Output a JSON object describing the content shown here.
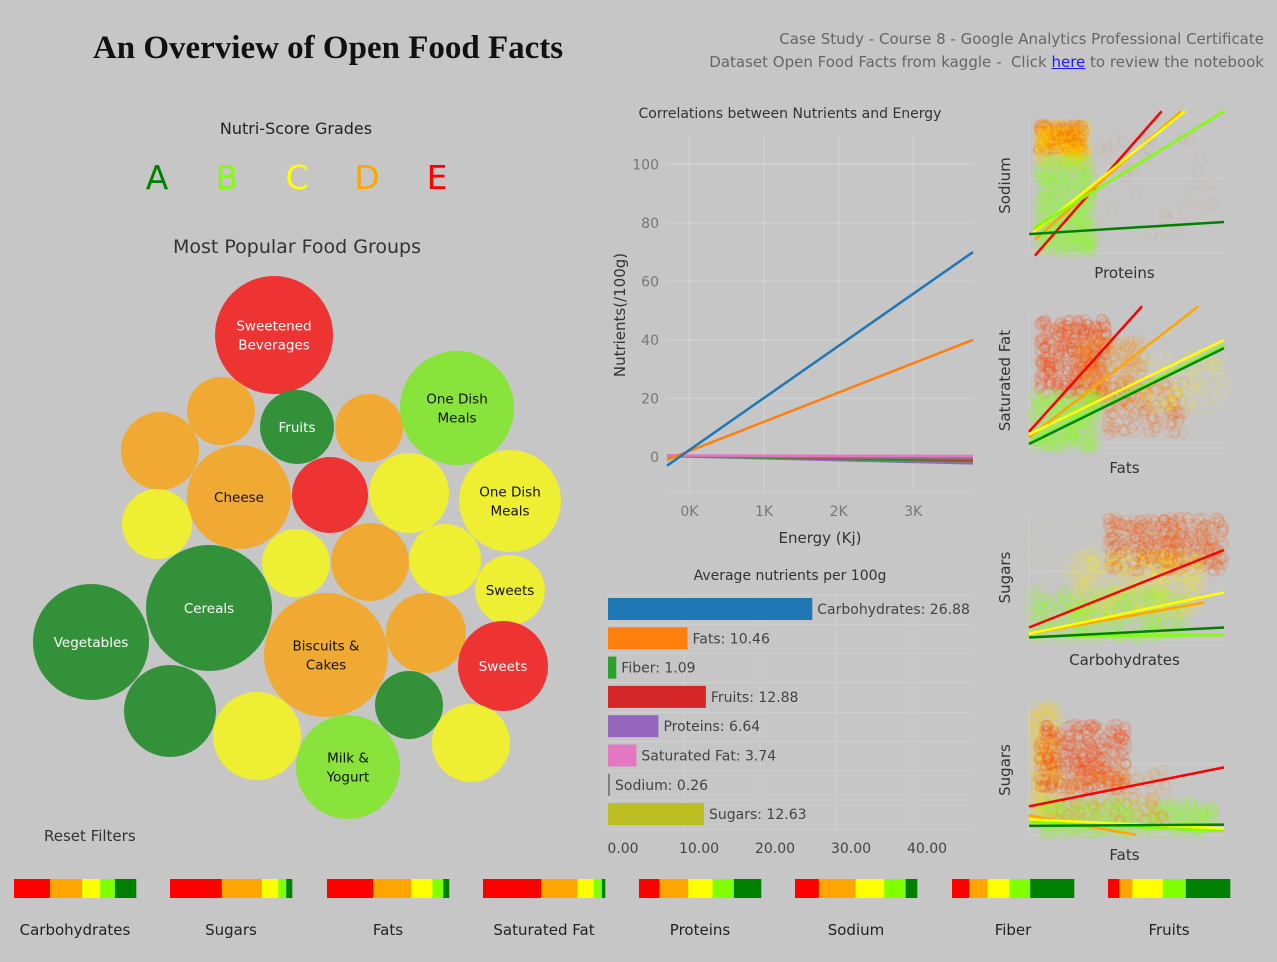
{
  "header": {
    "title": "An Overview of Open Food Facts",
    "subtitle_line1": "Case Study - Course 8 - Google Analytics Professional Certificate",
    "subtitle_line2_prefix": "Dataset Open Food Facts from kaggle -  Click ",
    "subtitle_link": "here",
    "subtitle_line2_suffix": " to review the notebook"
  },
  "nutriscore": {
    "title": "Nutri-Score Grades",
    "grades": [
      {
        "letter": "A",
        "color": "#008000"
      },
      {
        "letter": "B",
        "color": "#7fff00"
      },
      {
        "letter": "C",
        "color": "#ffff00"
      },
      {
        "letter": "D",
        "color": "#ffa500"
      },
      {
        "letter": "E",
        "color": "#ff0000"
      }
    ]
  },
  "reset_filters": "Reset Filters",
  "chart_data": [
    {
      "type": "bubble",
      "title": "Most Popular Food Groups",
      "grade_colors": {
        "A": "#33913a",
        "B": "#88e33a",
        "C": "#eeee33",
        "D": "#f0aa33",
        "E": "#ee3333"
      },
      "bubbles": [
        {
          "label": "Sweetened Beverages",
          "grade": "E"
        },
        {
          "label": "",
          "grade": "D"
        },
        {
          "label": "Fruits",
          "grade": "A"
        },
        {
          "label": "",
          "grade": "D"
        },
        {
          "label": "One Dish Meals",
          "grade": "B"
        },
        {
          "label": "",
          "grade": "D"
        },
        {
          "label": "Cheese",
          "grade": "D"
        },
        {
          "label": "",
          "grade": "E"
        },
        {
          "label": "",
          "grade": "C"
        },
        {
          "label": "One Dish Meals",
          "grade": "C"
        },
        {
          "label": "",
          "grade": "C"
        },
        {
          "label": "",
          "grade": "C"
        },
        {
          "label": "",
          "grade": "D"
        },
        {
          "label": "",
          "grade": "C"
        },
        {
          "label": "Sweets",
          "grade": "C"
        },
        {
          "label": "Cereals",
          "grade": "A"
        },
        {
          "label": "Vegetables",
          "grade": "A"
        },
        {
          "label": "Biscuits & Cakes",
          "grade": "D"
        },
        {
          "label": "",
          "grade": "D"
        },
        {
          "label": "Sweets",
          "grade": "E"
        },
        {
          "label": "",
          "grade": "A"
        },
        {
          "label": "",
          "grade": "C"
        },
        {
          "label": "",
          "grade": "A"
        },
        {
          "label": "Milk & Yogurt",
          "grade": "B"
        },
        {
          "label": "",
          "grade": "C"
        }
      ]
    },
    {
      "type": "line",
      "title": "Correlations between Nutrients and Energy",
      "xlabel": "Energy (Kj)",
      "ylabel": "Nutrients(/100g)",
      "xlim": [
        -300,
        3800
      ],
      "ylim": [
        -12,
        110
      ],
      "x_ticks": [
        "0K",
        "1K",
        "2K",
        "3K"
      ],
      "y_ticks": [
        "0",
        "20",
        "40",
        "60",
        "80",
        "100"
      ],
      "grid": true,
      "series": [
        {
          "color": "#1f77b4",
          "x": [
            -300,
            3800
          ],
          "y": [
            -3,
            70
          ]
        },
        {
          "color": "#ff7f0e",
          "x": [
            -300,
            3800
          ],
          "y": [
            -1,
            40
          ]
        },
        {
          "color": "#e377c2",
          "x": [
            -300,
            3800
          ],
          "y": [
            0.5,
            0.3
          ]
        },
        {
          "color": "#7f7f7f",
          "x": [
            -300,
            3800
          ],
          "y": [
            0.3,
            -0.5
          ]
        },
        {
          "color": "#d62728",
          "x": [
            -300,
            3800
          ],
          "y": [
            0.5,
            -1.0
          ]
        },
        {
          "color": "#2ca02c",
          "x": [
            -300,
            3800
          ],
          "y": [
            0.3,
            -1.5
          ]
        },
        {
          "color": "#9467bd",
          "x": [
            -300,
            3800
          ],
          "y": [
            0.3,
            -2.2
          ]
        }
      ]
    },
    {
      "type": "bar",
      "orientation": "horizontal",
      "title": "Average nutrients per 100g",
      "categories": [
        "Carbohydrates",
        "Fats",
        "Fiber",
        "Fruits",
        "Proteins",
        "Saturated Fat",
        "Sodium",
        "Sugars"
      ],
      "values": [
        26.88,
        10.46,
        1.09,
        12.88,
        6.64,
        3.74,
        0.26,
        12.63
      ],
      "value_labels": [
        "Carbohydrates: 26.88",
        "Fats: 10.46",
        "Fiber: 1.09",
        "Fruits: 12.88",
        "Proteins: 6.64",
        "Saturated Fat: 3.74",
        "Sodium: 0.26",
        "Sugars: 12.63"
      ],
      "colors": [
        "#1f77b4",
        "#ff7f0e",
        "#2ca02c",
        "#d62728",
        "#9467bd",
        "#e377c2",
        "#7f7f7f",
        "#bcbd22"
      ],
      "x_ticks": [
        "0.00",
        "10.00",
        "20.00",
        "30.00",
        "40.00"
      ],
      "xlim": [
        0,
        48
      ]
    },
    {
      "type": "scatter",
      "panels": [
        {
          "xlabel": "Proteins",
          "ylabel": "Sodium",
          "trend_colors": [
            "#ff0000",
            "#ffa500",
            "#ffff00",
            "#7fff00",
            "#008000"
          ]
        },
        {
          "xlabel": "Fats",
          "ylabel": "Saturated Fat",
          "trend_colors": [
            "#ff0000",
            "#ffa500",
            "#ffff00",
            "#7fff00",
            "#008000"
          ]
        },
        {
          "xlabel": "Carbohydrates",
          "ylabel": "Sugars",
          "trend_colors": [
            "#ff0000",
            "#ffa500",
            "#ffff00",
            "#7fff00",
            "#008000"
          ]
        },
        {
          "xlabel": "Fats",
          "ylabel": "Sugars",
          "trend_colors": [
            "#ff0000",
            "#ffa500",
            "#ffff00",
            "#7fff00",
            "#008000"
          ]
        }
      ]
    },
    {
      "type": "stacked_bar",
      "unit": "percent",
      "segment_grades": [
        "E",
        "D",
        "C",
        "B",
        "A"
      ],
      "segment_colors": [
        "#ff0000",
        "#ffa500",
        "#ffff00",
        "#7fff00",
        "#008000"
      ],
      "bars": [
        {
          "label": "Carbohydrates",
          "values": [
            29.6,
            26.3,
            14.8,
            12.1,
            17.3
          ]
        },
        {
          "label": "Sugars",
          "values": [
            42.5,
            32.9,
            13.4,
            6.6,
            4.7
          ]
        },
        {
          "label": "Fats",
          "values": [
            37.7,
            31.1,
            17.6,
            8.8,
            4.7
          ]
        },
        {
          "label": "Saturated Fat",
          "values": [
            47.7,
            29.6,
            13.4,
            6.8,
            2.5
          ]
        },
        {
          "label": "Proteins",
          "values": [
            16.7,
            23.6,
            20.0,
            17.5,
            22.2
          ]
        },
        {
          "label": "Sodium",
          "values": [
            19.5,
            30.1,
            23.6,
            17.5,
            9.3
          ]
        },
        {
          "label": "Fiber",
          "values": [
            14.1,
            14.9,
            18.2,
            16.9,
            35.9
          ]
        },
        {
          "label": "Fruits",
          "values": [
            9.3,
            10.7,
            24.9,
            18.9,
            36.2
          ]
        }
      ]
    }
  ]
}
